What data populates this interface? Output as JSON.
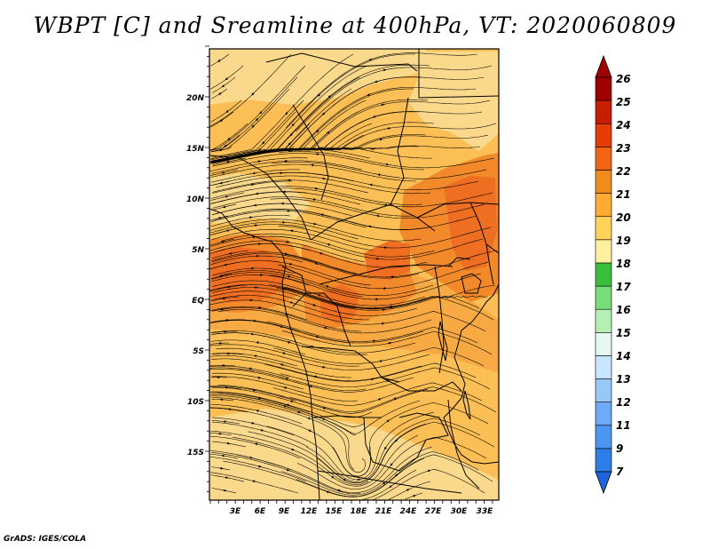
{
  "title": "WBPT [C] and Sreamline at 400hPa, VT: 2020060809",
  "credit": "GrADS: IGES/COLA",
  "lat_labels": [
    "20N",
    "15N",
    "10N",
    "5N",
    "EQ",
    "5S",
    "10S",
    "15S"
  ],
  "lon_labels": [
    "3E",
    "6E",
    "9E",
    "12E",
    "15E",
    "18E",
    "21E",
    "24E",
    "27E",
    "30E",
    "33E"
  ],
  "colorbar": {
    "labels": [
      "7",
      "9",
      "11",
      "12",
      "13",
      "14",
      "15",
      "16",
      "17",
      "18",
      "19",
      "20",
      "21",
      "22",
      "23",
      "24",
      "25",
      "26"
    ],
    "colors": [
      "#1e64dc",
      "#2f7ee8",
      "#4b96f0",
      "#6eaaf5",
      "#96c8f8",
      "#c8e6ff",
      "#e6f8f0",
      "#b4f0b4",
      "#78dc78",
      "#3cbe3c",
      "#fff0a0",
      "#ffd25a",
      "#ffaa32",
      "#f08c1e",
      "#f06414",
      "#e63c0a",
      "#c81e00",
      "#a00000"
    ]
  },
  "colors": {
    "field_base": "#fbbf55",
    "field_mid": "#f7aa44",
    "field_warm": "#f28a2c",
    "field_hot": "#ee6e22",
    "field_cool": "#fbd98c",
    "border": "#000000"
  }
}
